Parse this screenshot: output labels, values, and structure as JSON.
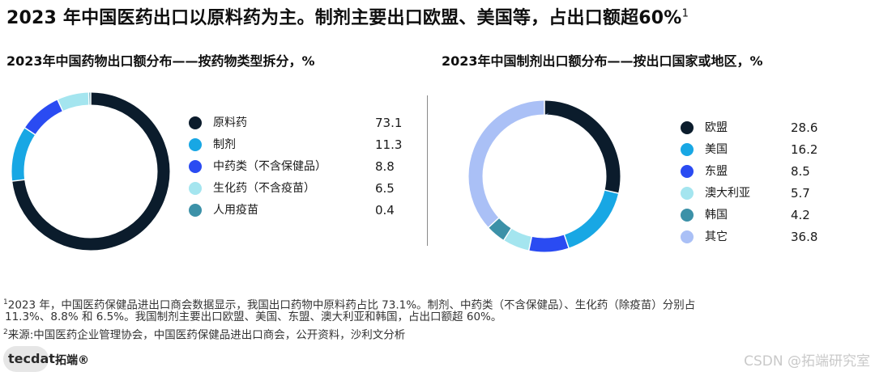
{
  "title": {
    "text": "2023 年中国医药出口以原料药为主。制剂主要出口欧盟、美国等，占出口额超60%",
    "sup": "1"
  },
  "chart_data": [
    {
      "type": "pie",
      "title": "2023年中国药物出口额分布——按药物类型拆分，%",
      "categories": [
        "原料药",
        "制剂",
        "中药类（不含保健品）",
        "生化药（不含疫苗）",
        "人用疫苗"
      ],
      "values": [
        73.1,
        11.3,
        8.8,
        6.5,
        0.4
      ],
      "value_labels": [
        "73.1",
        "11.3",
        "8.8",
        "6.5",
        "0.4"
      ],
      "colors": [
        "#0b1c2c",
        "#18a7e4",
        "#2a4bf2",
        "#a4e5ef",
        "#3c91a8"
      ],
      "legend": "right"
    },
    {
      "type": "pie",
      "title": "2023年中国制剂出口额分布——按出口国家或地区，%",
      "categories": [
        "欧盟",
        "美国",
        "东盟",
        "澳大利亚",
        "韩国",
        "其它"
      ],
      "values": [
        28.6,
        16.2,
        8.5,
        5.7,
        4.2,
        36.8
      ],
      "value_labels": [
        "28.6",
        "16.2",
        "8.5",
        "5.7",
        "4.2",
        "36.8"
      ],
      "colors": [
        "#0b1c2c",
        "#18a7e4",
        "#2a4bf2",
        "#a4e5ef",
        "#3c91a8",
        "#aac0f6"
      ],
      "legend": "right"
    }
  ],
  "footnotes": {
    "fn1_marker": "1",
    "fn1_line1": "2023 年，中国医药保健品进出口商会数据显示，我国出口药物中原料药占比 73.1%。制剂、中药类（不含保健品）、生化药（除疫苗）分别占",
    "fn1_line2": "11.3%、8.8% 和 6.5%。我国制剂主要出口欧盟、美国、东盟、澳大利亚和韩国，占出口额超 60%。",
    "fn2_marker": "2",
    "fn2_text": "来源:中国医药企业管理协会，中国医药保健品进出口商会，公开资料，沙利文分析"
  },
  "branding": {
    "logo_text": "tecdat",
    "logo_cn": "拓端®",
    "watermark": "CSDN @拓端研究室"
  }
}
